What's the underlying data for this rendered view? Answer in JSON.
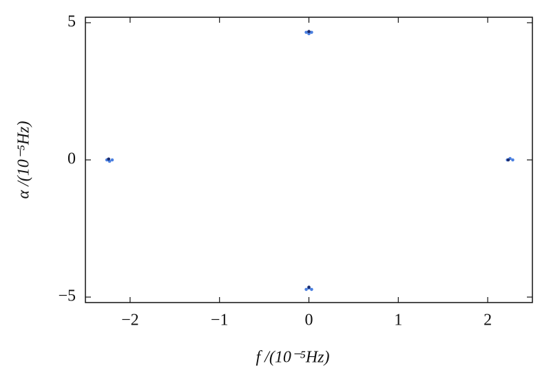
{
  "chart_data": {
    "type": "scatter",
    "xlabel": "f /(10⁻⁵Hz)",
    "ylabel": "α /(10⁻⁵Hz)",
    "xlim": [
      -2.5,
      2.5
    ],
    "ylim": [
      -5.2,
      5.2
    ],
    "xticks": [
      {
        "value": -2,
        "label": "−2"
      },
      {
        "value": -1,
        "label": "−1"
      },
      0,
      1,
      2
    ],
    "yticks": [
      {
        "value": -5,
        "label": "−5"
      },
      0,
      5
    ],
    "series": [
      {
        "color": "#4a7fe0",
        "x": [
          -0.03,
          0.03,
          0.0,
          -2.26,
          -2.2,
          -2.23,
          2.22,
          2.28,
          2.25,
          -0.03,
          0.03,
          0.0
        ],
        "y": [
          4.65,
          4.65,
          4.6,
          0.0,
          0.0,
          -0.05,
          0.0,
          0.0,
          0.05,
          -4.72,
          -4.72,
          -4.67
        ]
      },
      {
        "color": "#1c2c6e",
        "x": [
          0.0,
          -2.24,
          2.23,
          0.0
        ],
        "y": [
          4.68,
          0.03,
          0.0,
          -4.64
        ]
      }
    ]
  }
}
